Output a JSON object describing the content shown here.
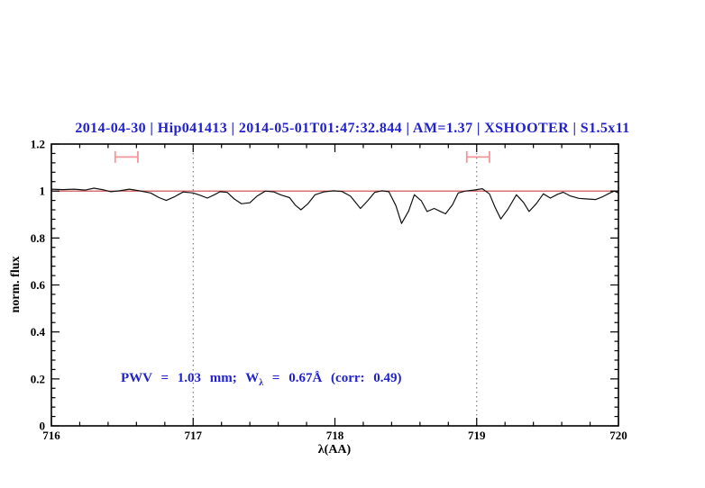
{
  "title": {
    "text": "2014-04-30 | Hip041413 | 2014-05-01T01:47:32.844 | AM=1.37 | XSHOOTER | S1.5x11",
    "color": "#2222cc"
  },
  "annotation": {
    "prefix": "PWV = 1.03 mm; W",
    "subscript": "λ",
    "suffix": " = 0.67Å (corr: 0.49)",
    "color": "#2222cc"
  },
  "chart_data": {
    "type": "line",
    "title": "2014-04-30 | Hip041413 | 2014-05-01T01:47:32.844 | AM=1.37 | XSHOOTER | S1.5x11",
    "xlabel": "λ(AA)",
    "ylabel": "norm. flux",
    "xlim": [
      716,
      720
    ],
    "ylim": [
      0,
      1.2
    ],
    "x_major_ticks": [
      716,
      717,
      718,
      719,
      720
    ],
    "x_major_labels": [
      "716",
      "717",
      "718",
      "719",
      "720"
    ],
    "x_minor_step": 0.2,
    "y_major_ticks": [
      0,
      0.2,
      0.4,
      0.6,
      0.8,
      1,
      1.2
    ],
    "y_major_labels": [
      "0",
      "0.2",
      "0.4",
      "0.6",
      "0.8",
      "1",
      "1.2"
    ],
    "y_minor_step": 0.04,
    "grid": "off",
    "legend": "none",
    "reference_lines": {
      "continuum": {
        "y": 1.0,
        "color": "#cc4444"
      },
      "vertical_dotted": [
        717,
        719
      ],
      "vertical_dotted_color": "#666666"
    },
    "telluric_markers": {
      "color": "#f09898",
      "bands": [
        {
          "x_min": 716.45,
          "x_max": 716.61,
          "y": 1.145,
          "half_height": 0.025
        },
        {
          "x_min": 718.93,
          "x_max": 719.09,
          "y": 1.145,
          "half_height": 0.025
        }
      ]
    },
    "series": [
      {
        "name": "spectrum",
        "color": "#111111",
        "x": [
          716.0,
          716.08,
          716.16,
          716.24,
          716.3,
          716.36,
          716.42,
          716.48,
          716.55,
          716.62,
          716.7,
          716.76,
          716.81,
          716.87,
          716.93,
          717.0,
          717.05,
          717.1,
          717.15,
          717.19,
          717.24,
          717.29,
          717.34,
          717.4,
          717.45,
          717.51,
          717.57,
          717.62,
          717.68,
          717.72,
          717.76,
          717.81,
          717.86,
          717.92,
          717.99,
          718.05,
          718.11,
          718.18,
          718.23,
          718.28,
          718.33,
          718.38,
          718.43,
          718.47,
          718.52,
          718.56,
          718.61,
          718.65,
          718.7,
          718.74,
          718.78,
          718.83,
          718.87,
          718.92,
          718.98,
          719.04,
          719.09,
          719.13,
          719.17,
          719.22,
          719.28,
          719.33,
          719.37,
          719.42,
          719.47,
          719.52,
          719.57,
          719.61,
          719.66,
          719.72,
          719.78,
          719.84,
          719.89,
          719.94,
          719.97,
          720.0
        ],
        "y": [
          1.008,
          1.006,
          1.008,
          1.004,
          1.012,
          1.006,
          0.997,
          1.001,
          1.008,
          1.001,
          0.992,
          0.972,
          0.96,
          0.976,
          0.996,
          0.992,
          0.982,
          0.97,
          0.984,
          0.997,
          0.994,
          0.966,
          0.946,
          0.95,
          0.978,
          1.0,
          0.996,
          0.983,
          0.972,
          0.94,
          0.92,
          0.946,
          0.984,
          0.996,
          1.001,
          0.998,
          0.978,
          0.926,
          0.958,
          0.994,
          1.001,
          0.997,
          0.938,
          0.862,
          0.915,
          0.984,
          0.958,
          0.913,
          0.926,
          0.914,
          0.903,
          0.942,
          0.992,
          1.0,
          1.004,
          1.01,
          0.988,
          0.93,
          0.881,
          0.922,
          0.984,
          0.952,
          0.913,
          0.946,
          0.988,
          0.97,
          0.986,
          0.995,
          0.979,
          0.969,
          0.966,
          0.964,
          0.976,
          0.992,
          1.0,
          0.992
        ]
      }
    ]
  }
}
